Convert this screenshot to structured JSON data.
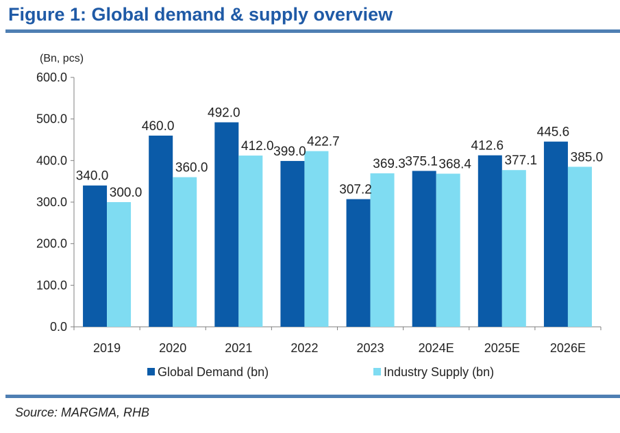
{
  "figure": {
    "title": "Figure 1: Global demand & supply overview",
    "source": "Source: MARGMA, RHB"
  },
  "chart_data": {
    "type": "bar",
    "unit_label": "(Bn, pcs)",
    "categories": [
      "2019",
      "2020",
      "2021",
      "2022",
      "2023",
      "2024E",
      "2025E",
      "2026E"
    ],
    "series": [
      {
        "name": "Global Demand (bn)",
        "color": "#0b5ba8",
        "values": [
          340.0,
          460.0,
          492.0,
          399.0,
          307.2,
          375.1,
          412.6,
          445.6
        ]
      },
      {
        "name": "Industry Supply (bn)",
        "color": "#7fdcf2",
        "values": [
          300.0,
          360.0,
          412.0,
          422.7,
          369.3,
          368.4,
          377.1,
          385.0
        ]
      }
    ],
    "ylim": [
      0,
      600
    ],
    "yticks": [
      0,
      100,
      200,
      300,
      400,
      500,
      600
    ],
    "ytick_decimals": 1,
    "value_decimals": 1,
    "grid": false,
    "legend": "bottom"
  }
}
